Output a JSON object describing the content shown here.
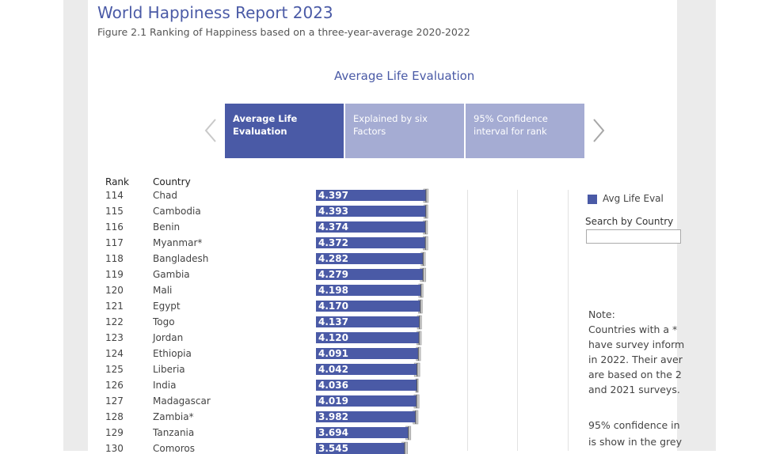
{
  "header": {
    "title": "World Happiness Report 2023",
    "subtitle": "Figure 2.1 Ranking of Happiness based on a three-year-average 2020-2022"
  },
  "section_title": "Average Life Evaluation",
  "tabs": [
    {
      "label_line1": "Average Life",
      "label_line2": "Evaluation",
      "active": true
    },
    {
      "label_line1": "Explained by six",
      "label_line2": "Factors",
      "active": false
    },
    {
      "label_line1": "95% Confidence",
      "label_line2": "interval for rank",
      "active": false
    }
  ],
  "icons": {
    "prev": "chevron-left-icon",
    "next": "chevron-right-icon"
  },
  "columns": {
    "rank": "Rank",
    "country": "Country"
  },
  "legend": {
    "label": "Avg Life Eval",
    "color": "#4a5aa6"
  },
  "search": {
    "label": "Search by Country",
    "value": ""
  },
  "note": {
    "lines": [
      "Note:",
      "Countries with a *",
      "have survey inform",
      "in 2022. Their aver",
      "are based on the 2",
      "and 2021 surveys."
    ],
    "ci_lines": [
      "95% confidence in",
      "is show in the grey"
    ]
  },
  "colors": {
    "bar": "#4a5aa6",
    "ci": "#c8c8c8",
    "accent": "#4a5aa6"
  },
  "chart_data": {
    "type": "bar",
    "orientation": "horizontal",
    "xlim": [
      0,
      8
    ],
    "rows": [
      {
        "rank": "114",
        "country": "Chad",
        "value": 4.397,
        "label": "4.397",
        "ci": [
          4.3,
          4.49
        ]
      },
      {
        "rank": "115",
        "country": "Cambodia",
        "value": 4.393,
        "label": "4.393",
        "ci": [
          4.31,
          4.47
        ]
      },
      {
        "rank": "116",
        "country": "Benin",
        "value": 4.374,
        "label": "4.374",
        "ci": [
          4.29,
          4.46
        ]
      },
      {
        "rank": "117",
        "country": "Myanmar*",
        "value": 4.372,
        "label": "4.372",
        "ci": [
          4.28,
          4.47
        ]
      },
      {
        "rank": "118",
        "country": "Bangladesh",
        "value": 4.282,
        "label": "4.282",
        "ci": [
          4.2,
          4.37
        ]
      },
      {
        "rank": "119",
        "country": "Gambia",
        "value": 4.279,
        "label": "4.279",
        "ci": [
          4.17,
          4.39
        ]
      },
      {
        "rank": "120",
        "country": "Mali",
        "value": 4.198,
        "label": "4.198",
        "ci": [
          4.11,
          4.28
        ]
      },
      {
        "rank": "121",
        "country": "Egypt",
        "value": 4.17,
        "label": "4.170",
        "ci": [
          4.09,
          4.25
        ]
      },
      {
        "rank": "122",
        "country": "Togo",
        "value": 4.137,
        "label": "4.137",
        "ci": [
          4.05,
          4.22
        ]
      },
      {
        "rank": "123",
        "country": "Jordan",
        "value": 4.12,
        "label": "4.120",
        "ci": [
          4.03,
          4.21
        ]
      },
      {
        "rank": "124",
        "country": "Ethiopia",
        "value": 4.091,
        "label": "4.091",
        "ci": [
          4.01,
          4.18
        ]
      },
      {
        "rank": "125",
        "country": "Liberia",
        "value": 4.042,
        "label": "4.042",
        "ci": [
          3.93,
          4.15
        ]
      },
      {
        "rank": "126",
        "country": "India",
        "value": 4.036,
        "label": "4.036",
        "ci": [
          3.98,
          4.09
        ]
      },
      {
        "rank": "127",
        "country": "Madagascar",
        "value": 4.019,
        "label": "4.019",
        "ci": [
          3.92,
          4.12
        ]
      },
      {
        "rank": "128",
        "country": "Zambia*",
        "value": 3.982,
        "label": "3.982",
        "ci": [
          3.88,
          4.08
        ]
      },
      {
        "rank": "129",
        "country": "Tanzania",
        "value": 3.694,
        "label": "3.694",
        "ci": [
          3.59,
          3.79
        ]
      },
      {
        "rank": "130",
        "country": "Comoros",
        "value": 3.545,
        "label": "3.545",
        "ci": [
          3.43,
          3.66
        ]
      }
    ]
  }
}
